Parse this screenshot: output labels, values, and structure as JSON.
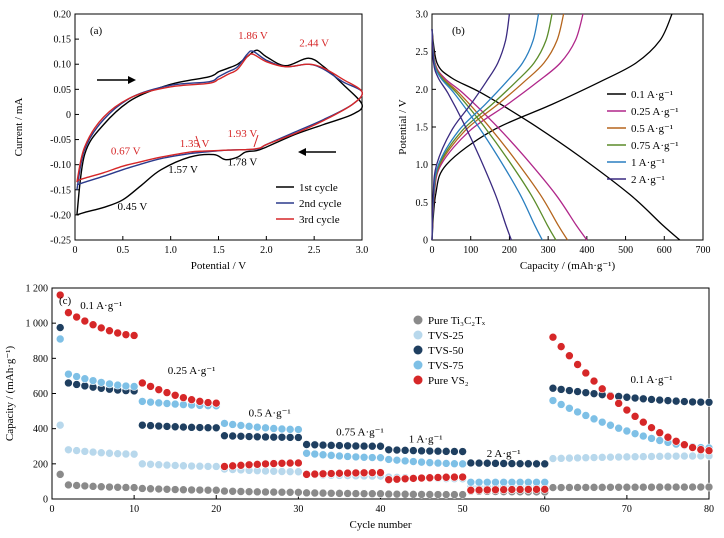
{
  "chart_data": [
    {
      "type": "line",
      "panel_label": "(a)",
      "xlabel": "Potential / V",
      "ylabel": "Current / mA",
      "xlim": [
        0,
        3.0
      ],
      "ylim": [
        -0.25,
        0.2
      ],
      "xticks": [
        0,
        0.5,
        1.0,
        1.5,
        2.0,
        2.5,
        3.0
      ],
      "xtick_labels": [
        "0",
        "0.5",
        "1.0",
        "1.5",
        "2.0",
        "2.5",
        "3.0"
      ],
      "yticks": [
        -0.25,
        -0.2,
        -0.15,
        -0.1,
        -0.05,
        0,
        0.05,
        0.1,
        0.15,
        0.2
      ],
      "ytick_labels": [
        "-0.25",
        "-0.20",
        "-0.15",
        "-0.10",
        "-0.05",
        "0",
        "0.05",
        "0.10",
        "0.15",
        "0.20"
      ],
      "legend_position": "bottom-right",
      "annotations": [
        {
          "text": "1.86 V",
          "x": 1.86,
          "y": 0.15,
          "color": "#d62728"
        },
        {
          "text": "2.44 V",
          "x": 2.5,
          "y": 0.135,
          "color": "#d62728"
        },
        {
          "text": "1.35 V",
          "x": 1.25,
          "y": -0.065,
          "color": "#d62728"
        },
        {
          "text": "1.93 V",
          "x": 1.75,
          "y": -0.045,
          "color": "#d62728"
        },
        {
          "text": "0.67 V",
          "x": 0.53,
          "y": -0.08,
          "color": "#d62728"
        },
        {
          "text": "1.57 V",
          "x": 1.13,
          "y": -0.117,
          "color": "#000000"
        },
        {
          "text": "1.78 V",
          "x": 1.75,
          "y": -0.102,
          "color": "#000000"
        },
        {
          "text": "0.45 V",
          "x": 0.6,
          "y": -0.19,
          "color": "#000000"
        }
      ],
      "series": [
        {
          "name": "1st cycle",
          "color": "#000000",
          "x": [
            0.02,
            0.1,
            0.3,
            0.6,
            1.0,
            1.4,
            1.5,
            1.6,
            1.7,
            1.8,
            1.9,
            2.0,
            2.2,
            2.44,
            2.6,
            2.8,
            3.0,
            2.9,
            2.6,
            2.3,
            2.0,
            1.9,
            1.78,
            1.7,
            1.57,
            1.45,
            1.2,
            0.9,
            0.7,
            0.5,
            0.3,
            0.1,
            0.02
          ],
          "y": [
            -0.2,
            -0.08,
            -0.02,
            0.03,
            0.06,
            0.075,
            0.085,
            0.092,
            0.1,
            0.115,
            0.128,
            0.115,
            0.097,
            0.112,
            0.095,
            0.06,
            0.02,
            0.0,
            -0.02,
            -0.04,
            -0.065,
            -0.072,
            -0.075,
            -0.085,
            -0.09,
            -0.08,
            -0.085,
            -0.11,
            -0.14,
            -0.17,
            -0.185,
            -0.195,
            -0.2
          ]
        },
        {
          "name": "2nd cycle",
          "color": "#2b3a8c",
          "x": [
            0.02,
            0.1,
            0.3,
            0.6,
            1.0,
            1.4,
            1.5,
            1.6,
            1.7,
            1.8,
            1.86,
            2.0,
            2.2,
            2.44,
            2.6,
            2.8,
            3.0,
            2.9,
            2.6,
            2.3,
            2.0,
            1.93,
            1.8,
            1.6,
            1.35,
            1.2,
            0.9,
            0.67,
            0.5,
            0.3,
            0.1,
            0.02
          ],
          "y": [
            -0.15,
            -0.07,
            -0.01,
            0.035,
            0.058,
            0.065,
            0.075,
            0.085,
            0.095,
            0.12,
            0.126,
            0.108,
            0.095,
            0.1,
            0.09,
            0.065,
            0.045,
            0.02,
            -0.01,
            -0.035,
            -0.06,
            -0.068,
            -0.07,
            -0.071,
            -0.075,
            -0.078,
            -0.088,
            -0.1,
            -0.11,
            -0.123,
            -0.135,
            -0.14
          ]
        },
        {
          "name": "3rd cycle",
          "color": "#d62728",
          "x": [
            0.02,
            0.1,
            0.3,
            0.6,
            1.0,
            1.4,
            1.5,
            1.6,
            1.7,
            1.8,
            1.86,
            2.0,
            2.2,
            2.44,
            2.6,
            2.8,
            3.0,
            2.9,
            2.6,
            2.3,
            2.0,
            1.93,
            1.8,
            1.6,
            1.35,
            1.2,
            0.9,
            0.67,
            0.5,
            0.3,
            0.1,
            0.02
          ],
          "y": [
            -0.135,
            -0.065,
            -0.005,
            0.035,
            0.055,
            0.062,
            0.07,
            0.08,
            0.09,
            0.115,
            0.12,
            0.105,
            0.095,
            0.1,
            0.092,
            0.07,
            0.045,
            0.02,
            -0.012,
            -0.038,
            -0.06,
            -0.067,
            -0.07,
            -0.071,
            -0.073,
            -0.075,
            -0.085,
            -0.095,
            -0.103,
            -0.116,
            -0.127,
            -0.132
          ]
        }
      ]
    },
    {
      "type": "line",
      "panel_label": "(b)",
      "xlabel": "Capacity / (mAh·g⁻¹)",
      "ylabel": "Potential / V",
      "xlim": [
        0,
        700
      ],
      "ylim": [
        0,
        3.0
      ],
      "xticks": [
        0,
        100,
        200,
        300,
        400,
        500,
        600,
        700
      ],
      "xtick_labels": [
        "0",
        "100",
        "200",
        "300",
        "400",
        "500",
        "600",
        "700"
      ],
      "yticks": [
        0,
        0.5,
        1.0,
        1.5,
        2.0,
        2.5,
        3.0
      ],
      "ytick_labels": [
        "0",
        "0.5",
        "1.0",
        "1.5",
        "2.0",
        "2.5",
        "3.0"
      ],
      "legend_position": "right",
      "series": [
        {
          "name": "0.1 A·g⁻¹",
          "color": "#000000",
          "capacity": 640,
          "charge_capacity": 620
        },
        {
          "name": "0.25 A·g⁻¹",
          "color": "#b0278a",
          "capacity": 400,
          "charge_capacity": 390
        },
        {
          "name": "0.5 A·g⁻¹",
          "color": "#b5651d",
          "capacity": 350,
          "charge_capacity": 340
        },
        {
          "name": "0.75 A·g⁻¹",
          "color": "#5b8c2a",
          "capacity": 320,
          "charge_capacity": 310
        },
        {
          "name": "1 A·g⁻¹",
          "color": "#2a7fc0",
          "capacity": 285,
          "charge_capacity": 275
        },
        {
          "name": "2 A·g⁻¹",
          "color": "#3a2a80",
          "capacity": 205,
          "charge_capacity": 200
        }
      ]
    },
    {
      "type": "scatter",
      "panel_label": "(c)",
      "xlabel": "Cycle number",
      "ylabel": "Capacity / (mAh·g⁻¹)",
      "xlim": [
        0,
        80
      ],
      "ylim": [
        0,
        1200
      ],
      "xticks": [
        0,
        10,
        20,
        30,
        40,
        50,
        60,
        70,
        80
      ],
      "xtick_labels": [
        "0",
        "10",
        "20",
        "30",
        "40",
        "50",
        "60",
        "70",
        "80"
      ],
      "yticks": [
        0,
        200,
        400,
        600,
        800,
        1000,
        1200
      ],
      "ytick_labels": [
        "0",
        "200",
        "400",
        "600",
        "800",
        "1 000",
        "1 200"
      ],
      "legend_position": "top-right",
      "rate_labels": [
        {
          "text": "0.1 A·g⁻¹",
          "x": 6,
          "y": 1080
        },
        {
          "text": "0.25 A·g⁻¹",
          "x": 17,
          "y": 710
        },
        {
          "text": "0.5 A·g⁻¹",
          "x": 26.5,
          "y": 470
        },
        {
          "text": "0.75 A·g⁻¹",
          "x": 37.5,
          "y": 360
        },
        {
          "text": "1 A·g⁻¹",
          "x": 45.5,
          "y": 320
        },
        {
          "text": "2 A·g⁻¹",
          "x": 55,
          "y": 240
        },
        {
          "text": "0.1 A·g⁻¹",
          "x": 73,
          "y": 660
        }
      ],
      "series": [
        {
          "name": "Pure Ti₃C₂Tₓ",
          "color": "#8a8a8a",
          "segments": [
            [
              1,
              1,
              140,
              140
            ],
            [
              2,
              10,
              80,
              65
            ],
            [
              11,
              20,
              60,
              50
            ],
            [
              21,
              30,
              45,
              38
            ],
            [
              31,
              40,
              35,
              30
            ],
            [
              41,
              50,
              28,
              25
            ],
            [
              51,
              60,
              45,
              40
            ],
            [
              61,
              80,
              65,
              68
            ]
          ]
        },
        {
          "name": "TVS-25",
          "color": "#b8d8ec",
          "segments": [
            [
              1,
              1,
              420,
              420
            ],
            [
              2,
              10,
              280,
              255
            ],
            [
              11,
              20,
              200,
              185
            ],
            [
              21,
              30,
              170,
              155
            ],
            [
              31,
              40,
              140,
              130
            ],
            [
              41,
              50,
              125,
              115
            ],
            [
              51,
              60,
              70,
              70
            ],
            [
              61,
              80,
              230,
              245
            ]
          ]
        },
        {
          "name": "TVS-50",
          "color": "#1f3f60",
          "segments": [
            [
              1,
              1,
              975,
              975
            ],
            [
              2,
              10,
              660,
              615
            ],
            [
              11,
              20,
              420,
              405
            ],
            [
              21,
              30,
              360,
              350
            ],
            [
              31,
              40,
              310,
              300
            ],
            [
              41,
              50,
              280,
              270
            ],
            [
              51,
              60,
              205,
              200
            ],
            [
              61,
              80,
              630,
              550
            ]
          ]
        },
        {
          "name": "TVS-75",
          "color": "#7ec0e6",
          "segments": [
            [
              1,
              1,
              910,
              910
            ],
            [
              2,
              10,
              710,
              640
            ],
            [
              11,
              20,
              555,
              530
            ],
            [
              21,
              30,
              430,
              395
            ],
            [
              31,
              40,
              260,
              235
            ],
            [
              41,
              50,
              225,
              200
            ],
            [
              51,
              60,
              95,
              95
            ],
            [
              61,
              80,
              560,
              290
            ]
          ]
        },
        {
          "name": "Pure VS₂",
          "color": "#d62728",
          "segments": [
            [
              1,
              1,
              1160,
              1160
            ],
            [
              2,
              10,
              1060,
              930
            ],
            [
              11,
              20,
              660,
              545
            ],
            [
              21,
              30,
              185,
              205
            ],
            [
              31,
              40,
              140,
              150
            ],
            [
              41,
              50,
              110,
              125
            ],
            [
              51,
              60,
              50,
              55
            ],
            [
              61,
              80,
              920,
              275
            ]
          ]
        }
      ]
    }
  ]
}
